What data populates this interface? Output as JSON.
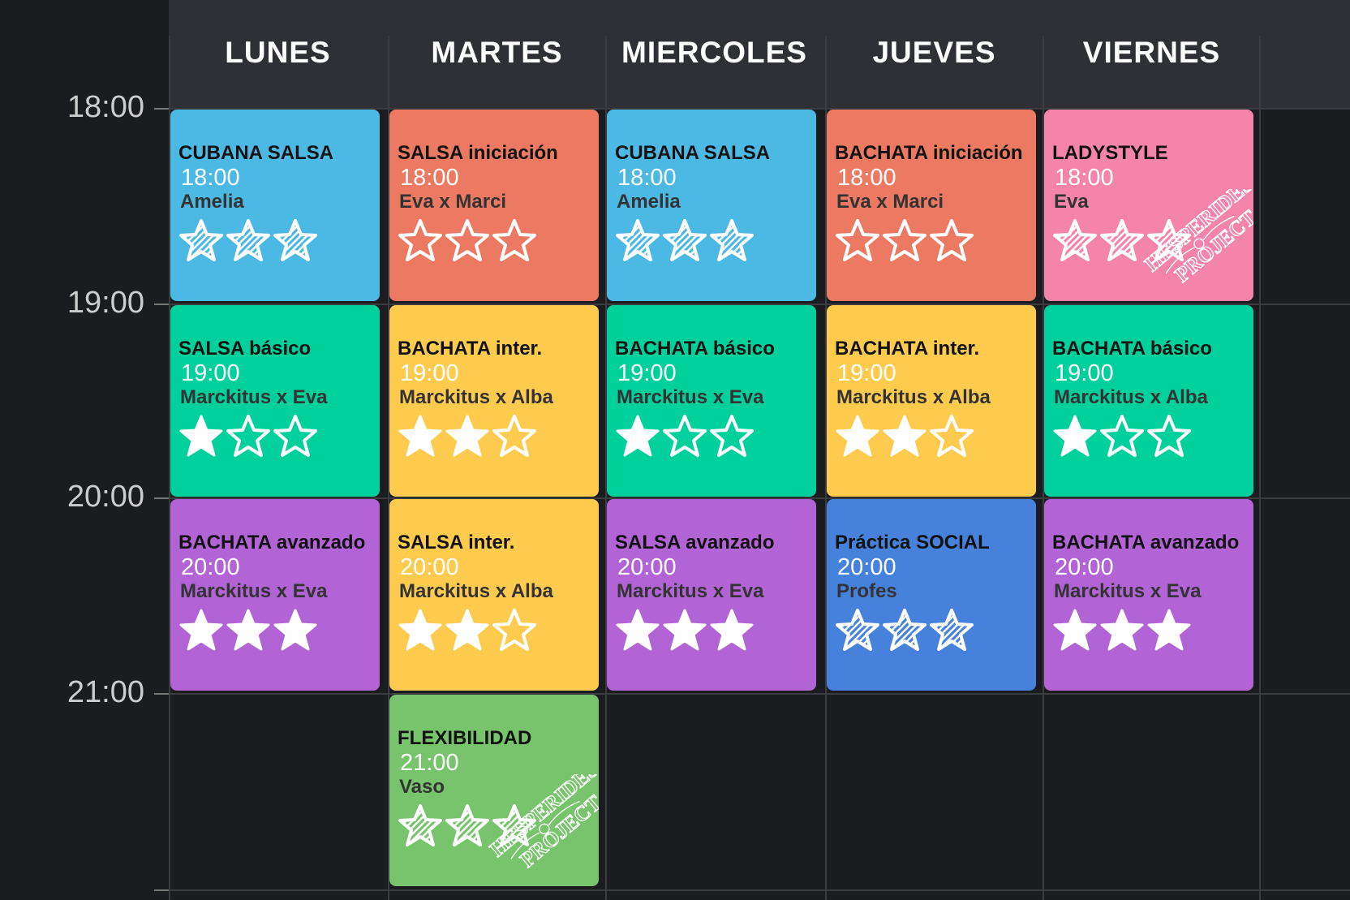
{
  "days": [
    "LUNES",
    "MARTES",
    "MIERCOLES",
    "JUEVES",
    "VIERNES"
  ],
  "hours": [
    "18:00",
    "19:00",
    "20:00",
    "21:00"
  ],
  "colors": {
    "background": "#1b1c20",
    "header": "#2f3035"
  },
  "logo_text": "HESPERIDES PROJECT",
  "classes": [
    {
      "day": 0,
      "slot": 0,
      "title": "CUBANA SALSA",
      "time": "18:00",
      "teacher": "Amelia",
      "color": "#4cb8e4",
      "stars": [
        "hatched",
        "hatched",
        "hatched"
      ]
    },
    {
      "day": 1,
      "slot": 0,
      "title": "SALSA iniciación",
      "time": "18:00",
      "teacher": "Eva x Marci",
      "color": "#ec7a63",
      "stars": [
        "empty",
        "empty",
        "empty"
      ]
    },
    {
      "day": 2,
      "slot": 0,
      "title": "CUBANA SALSA",
      "time": "18:00",
      "teacher": "Amelia",
      "color": "#4cb8e4",
      "stars": [
        "hatched",
        "hatched",
        "hatched"
      ]
    },
    {
      "day": 3,
      "slot": 0,
      "title": "BACHATA iniciación",
      "time": "18:00",
      "teacher": "Eva x Marci",
      "color": "#ec7a63",
      "stars": [
        "empty",
        "empty",
        "empty"
      ]
    },
    {
      "day": 4,
      "slot": 0,
      "title": "LADYSTYLE",
      "time": "18:00",
      "teacher": "Eva",
      "color": "#f484aa",
      "stars": [
        "hatched",
        "hatched",
        "hatched"
      ],
      "logo": true
    },
    {
      "day": 0,
      "slot": 1,
      "title": "SALSA básico",
      "time": "19:00",
      "teacher": "Marckitus x Eva",
      "color": "#00d09c",
      "stars": [
        "filled",
        "empty",
        "empty"
      ]
    },
    {
      "day": 1,
      "slot": 1,
      "title": "BACHATA inter.",
      "time": "19:00",
      "teacher": "Marckitus x Alba",
      "color": "#fecb4f",
      "stars": [
        "filled",
        "filled",
        "empty"
      ]
    },
    {
      "day": 2,
      "slot": 1,
      "title": "BACHATA básico",
      "time": "19:00",
      "teacher": "Marckitus x Eva",
      "color": "#00d09c",
      "stars": [
        "filled",
        "empty",
        "empty"
      ]
    },
    {
      "day": 3,
      "slot": 1,
      "title": "BACHATA inter.",
      "time": "19:00",
      "teacher": "Marckitus x Alba",
      "color": "#fecb4f",
      "stars": [
        "filled",
        "filled",
        "empty"
      ]
    },
    {
      "day": 4,
      "slot": 1,
      "title": "BACHATA básico",
      "time": "19:00",
      "teacher": "Marckitus x Alba",
      "color": "#00d09c",
      "stars": [
        "filled",
        "empty",
        "empty"
      ]
    },
    {
      "day": 0,
      "slot": 2,
      "title": "BACHATA avanzado",
      "time": "20:00",
      "teacher": "Marckitus x Eva",
      "color": "#b263d6",
      "stars": [
        "filled",
        "filled",
        "filled"
      ]
    },
    {
      "day": 1,
      "slot": 2,
      "title": "SALSA inter.",
      "time": "20:00",
      "teacher": "Marckitus x Alba",
      "color": "#fecb4f",
      "stars": [
        "filled",
        "filled",
        "empty"
      ]
    },
    {
      "day": 2,
      "slot": 2,
      "title": "SALSA avanzado",
      "time": "20:00",
      "teacher": "Marckitus x Eva",
      "color": "#b263d6",
      "stars": [
        "filled",
        "filled",
        "filled"
      ]
    },
    {
      "day": 3,
      "slot": 2,
      "title": "Práctica SOCIAL",
      "time": "20:00",
      "teacher": "Profes",
      "color": "#4682dc",
      "stars": [
        "hatched",
        "hatched",
        "hatched"
      ]
    },
    {
      "day": 4,
      "slot": 2,
      "title": "BACHATA avanzado",
      "time": "20:00",
      "teacher": "Marckitus x Eva",
      "color": "#b263d6",
      "stars": [
        "filled",
        "filled",
        "filled"
      ]
    },
    {
      "day": 1,
      "slot": 3,
      "title": "FLEXIBILIDAD",
      "time": "21:00",
      "teacher": "Vaso",
      "color": "#78c46c",
      "stars": [
        "hatched",
        "hatched",
        "hatched"
      ],
      "logo": true
    }
  ]
}
